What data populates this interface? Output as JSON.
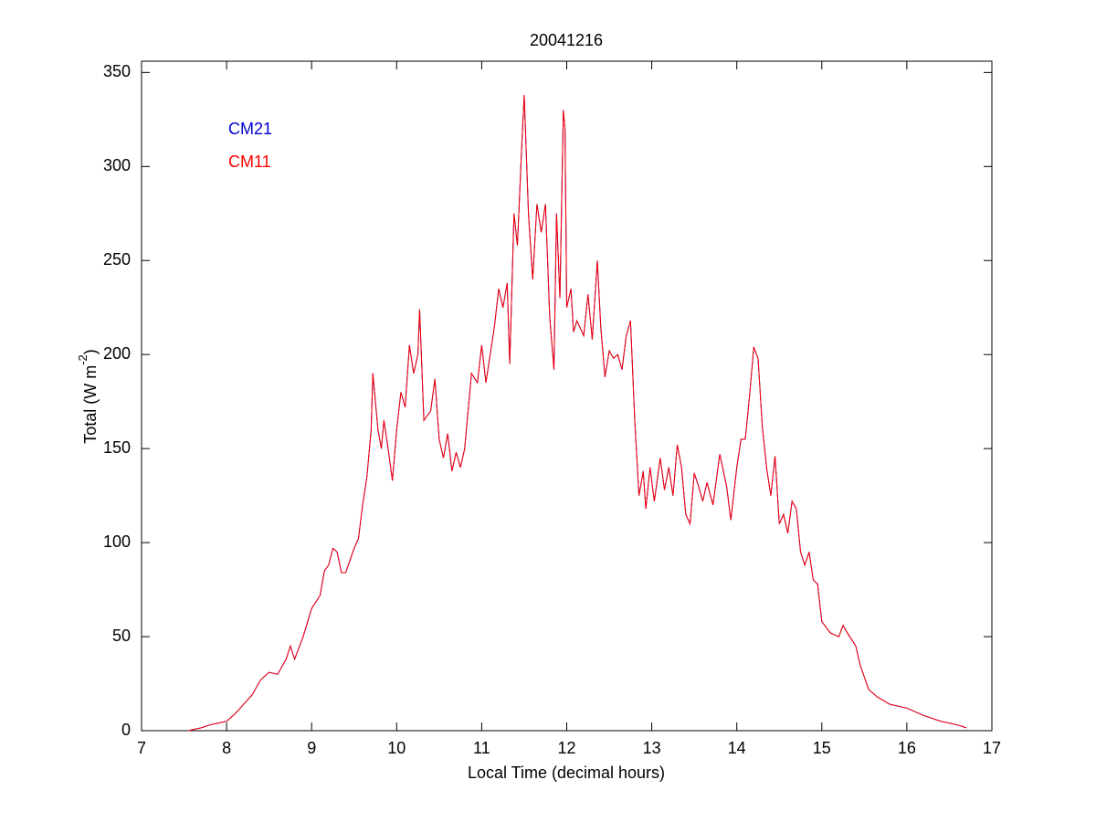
{
  "chart_data": {
    "type": "line",
    "title": "20041216",
    "xlabel": "Local Time (decimal hours)",
    "ylabel": [
      "Total (W m",
      "-2",
      ")"
    ],
    "xlim": [
      7,
      17
    ],
    "xticks": [
      7,
      8,
      9,
      10,
      11,
      12,
      13,
      14,
      15,
      16,
      17
    ],
    "ylim": [
      0,
      356
    ],
    "yticks": [
      0,
      50,
      100,
      150,
      200,
      250,
      300,
      350
    ],
    "legend": "upper left",
    "x": [
      7.55,
      7.7,
      7.8,
      7.9,
      8.0,
      8.1,
      8.2,
      8.3,
      8.4,
      8.5,
      8.6,
      8.7,
      8.75,
      8.8,
      8.9,
      9.0,
      9.1,
      9.15,
      9.2,
      9.25,
      9.3,
      9.35,
      9.4,
      9.5,
      9.55,
      9.6,
      9.65,
      9.7,
      9.72,
      9.78,
      9.82,
      9.85,
      9.9,
      9.95,
      10.0,
      10.05,
      10.1,
      10.15,
      10.2,
      10.25,
      10.27,
      10.32,
      10.4,
      10.45,
      10.5,
      10.55,
      10.6,
      10.65,
      10.7,
      10.75,
      10.8,
      10.88,
      10.95,
      11.0,
      11.05,
      11.1,
      11.15,
      11.2,
      11.25,
      11.3,
      11.33,
      11.38,
      11.42,
      11.47,
      11.5,
      11.55,
      11.6,
      11.65,
      11.7,
      11.75,
      11.8,
      11.85,
      11.88,
      11.92,
      11.96,
      11.98,
      12.0,
      12.05,
      12.08,
      12.12,
      12.2,
      12.25,
      12.3,
      12.36,
      12.4,
      12.45,
      12.5,
      12.55,
      12.6,
      12.65,
      12.7,
      12.75,
      12.8,
      12.85,
      12.9,
      12.93,
      12.98,
      13.03,
      13.1,
      13.15,
      13.2,
      13.25,
      13.3,
      13.35,
      13.4,
      13.45,
      13.5,
      13.55,
      13.6,
      13.65,
      13.72,
      13.8,
      13.88,
      13.93,
      14.0,
      14.05,
      14.1,
      14.15,
      14.2,
      14.25,
      14.3,
      14.35,
      14.4,
      14.45,
      14.5,
      14.55,
      14.6,
      14.65,
      14.7,
      14.75,
      14.8,
      14.85,
      14.9,
      14.95,
      15.0,
      15.1,
      15.2,
      15.25,
      15.3,
      15.4,
      15.45,
      15.55,
      15.65,
      15.8,
      16.0,
      16.2,
      16.4,
      16.6,
      16.7
    ],
    "series": [
      {
        "name": "CM21",
        "color": "#0000cc",
        "values": [
          0,
          1.5,
          3,
          4,
          5,
          9,
          14,
          19,
          27,
          31,
          30,
          38,
          45,
          38,
          50,
          65,
          72,
          85,
          88,
          97,
          95,
          84,
          84,
          97,
          102,
          120,
          135,
          160,
          190,
          160,
          150,
          165,
          150,
          133,
          160,
          180,
          172,
          205,
          190,
          200,
          224,
          165,
          170,
          187,
          155,
          145,
          158,
          138,
          148,
          140,
          150,
          190,
          185,
          205,
          185,
          200,
          215,
          235,
          225,
          238,
          195,
          275,
          258,
          310,
          338,
          275,
          240,
          280,
          265,
          280,
          220,
          192,
          275,
          230,
          330,
          320,
          225,
          235,
          212,
          218,
          210,
          232,
          208,
          250,
          215,
          188,
          202,
          198,
          200,
          192,
          210,
          218,
          165,
          125,
          138,
          118,
          140,
          122,
          145,
          128,
          140,
          125,
          152,
          140,
          115,
          110,
          137,
          130,
          122,
          132,
          120,
          147,
          130,
          112,
          140,
          155,
          155,
          178,
          204,
          198,
          162,
          140,
          125,
          146,
          110,
          115,
          105,
          122,
          118,
          95,
          88,
          95,
          80,
          78,
          58,
          52,
          50,
          56,
          52,
          45,
          35,
          22,
          18,
          14,
          12,
          8,
          5,
          3,
          1.5
        ]
      },
      {
        "name": "CM11",
        "color": "#ff0000",
        "values": [
          0,
          1.5,
          3,
          4,
          5,
          9,
          14,
          19,
          27,
          31,
          30,
          38,
          45,
          38,
          50,
          65,
          72,
          85,
          88,
          97,
          95,
          84,
          84,
          97,
          102,
          120,
          135,
          160,
          190,
          160,
          150,
          165,
          150,
          133,
          160,
          180,
          172,
          205,
          190,
          200,
          224,
          165,
          170,
          187,
          155,
          145,
          158,
          138,
          148,
          140,
          150,
          190,
          185,
          205,
          185,
          200,
          215,
          235,
          225,
          238,
          195,
          275,
          258,
          310,
          338,
          275,
          240,
          280,
          265,
          280,
          220,
          192,
          275,
          230,
          330,
          320,
          225,
          235,
          212,
          218,
          210,
          232,
          208,
          250,
          215,
          188,
          202,
          198,
          200,
          192,
          210,
          218,
          165,
          125,
          138,
          118,
          140,
          122,
          145,
          128,
          140,
          125,
          152,
          140,
          115,
          110,
          137,
          130,
          122,
          132,
          120,
          147,
          130,
          112,
          140,
          155,
          155,
          178,
          204,
          198,
          162,
          140,
          125,
          146,
          110,
          115,
          105,
          122,
          118,
          95,
          88,
          95,
          80,
          78,
          58,
          52,
          50,
          56,
          52,
          45,
          35,
          22,
          18,
          14,
          12,
          8,
          5,
          3,
          1.5
        ]
      }
    ]
  }
}
